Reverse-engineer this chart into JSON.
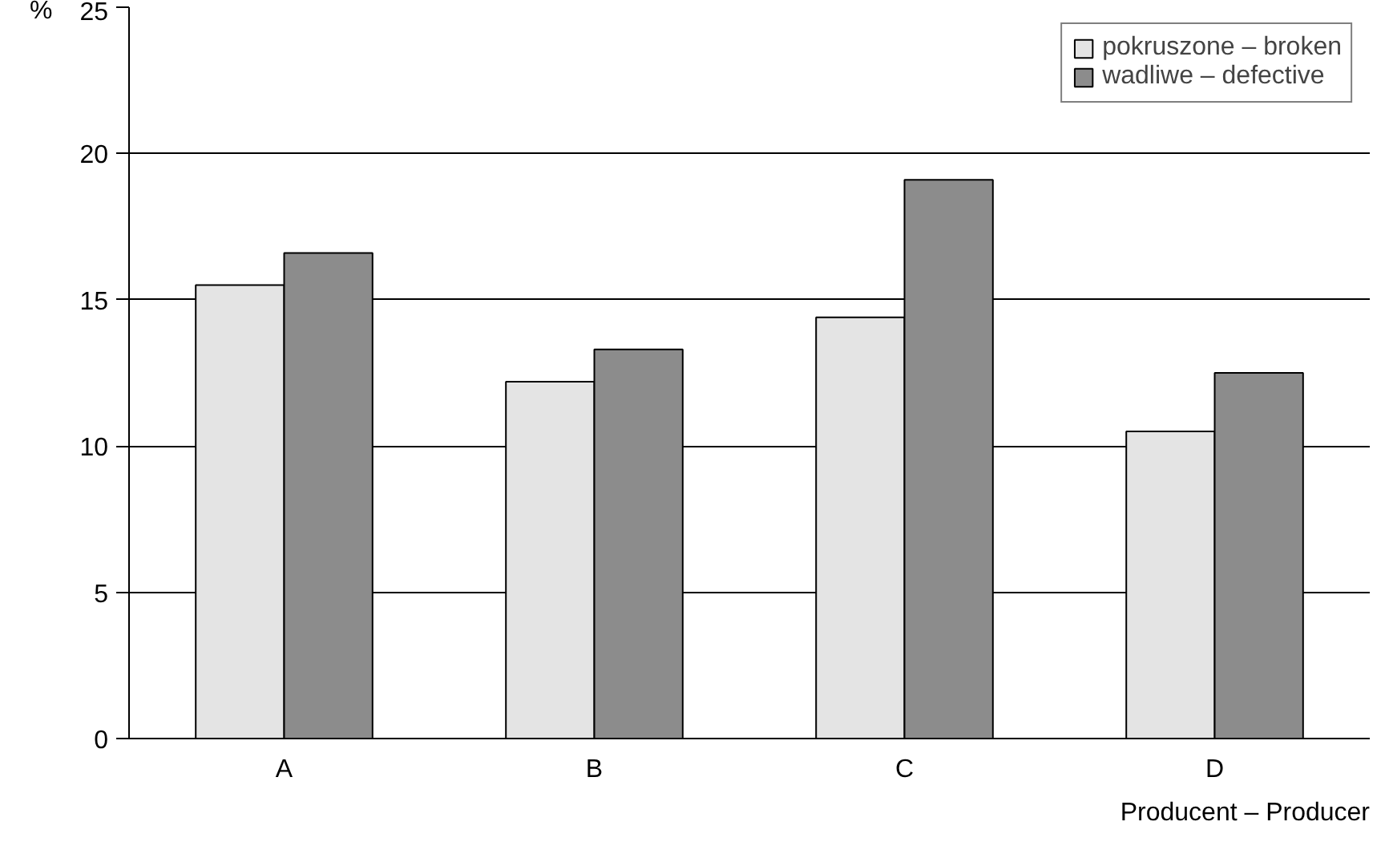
{
  "chart_data": {
    "type": "bar",
    "xlabel": "Producent – Producer",
    "ylabel": "%",
    "categories": [
      "A",
      "B",
      "C",
      "D"
    ],
    "series": [
      {
        "name": "pokruszone – broken",
        "color": "#e4e4e4",
        "values": [
          15.5,
          12.2,
          14.4,
          10.5
        ]
      },
      {
        "name": "wadliwe – defective",
        "color": "#8c8c8c",
        "values": [
          16.6,
          13.3,
          19.1,
          12.5
        ]
      }
    ],
    "ylim": [
      0,
      25
    ],
    "yticks": [
      0,
      5,
      10,
      15,
      20,
      25
    ],
    "grid": "y",
    "legend": "top right"
  }
}
